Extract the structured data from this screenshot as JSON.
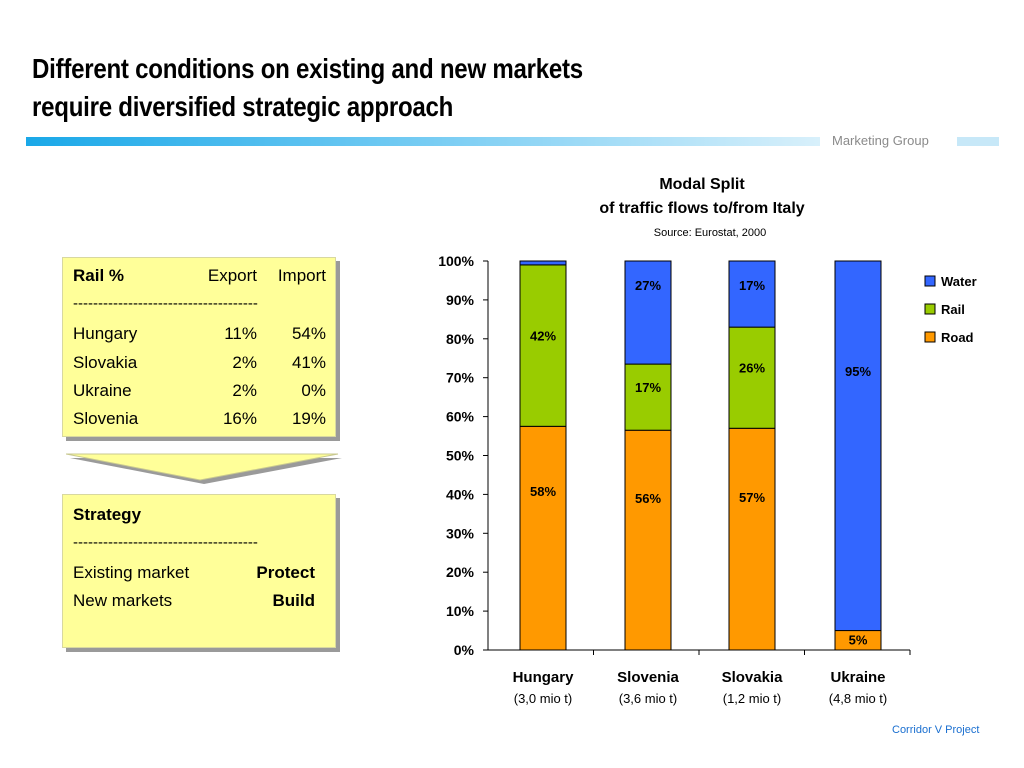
{
  "page": {
    "title_line1": "Different conditions on existing and new markets",
    "title_line2": "require diversified strategic approach",
    "group_label": "Marketing Group",
    "footer": "Corridor V  Project"
  },
  "rail_table": {
    "header": "Rail %",
    "col1": "Export",
    "col2": "Import",
    "separator": "-------------------------------------",
    "rows": [
      {
        "country": "Hungary",
        "export": "11%",
        "import": "54%"
      },
      {
        "country": "Slovakia",
        "export": "2%",
        "import": "41%"
      },
      {
        "country": "Ukraine",
        "export": "2%",
        "import": "0%"
      },
      {
        "country": "Slovenia",
        "export": "16%",
        "import": "19%"
      }
    ]
  },
  "strategy": {
    "header": "Strategy",
    "separator": "-------------------------------------",
    "rows": [
      {
        "label": "Existing market",
        "value": "Protect"
      },
      {
        "label": "New markets",
        "value": "Build"
      }
    ]
  },
  "colors": {
    "water": "#3366ff",
    "rail": "#99cc00",
    "road": "#ff9900",
    "panel": "#ffff99"
  },
  "chart_data": {
    "type": "bar",
    "stacked": true,
    "title": "Modal Split",
    "subtitle": "of traffic flows to/from Italy",
    "source": "Source: Eurostat, 2000",
    "categories": [
      "Hungary",
      "Slovenia",
      "Slovakia",
      "Ukraine"
    ],
    "category_sublabels": [
      "(3,0 mio t)",
      "(3,6 mio t)",
      "(1,2 mio t)",
      "(4,8 mio t)"
    ],
    "ylim": [
      0,
      100
    ],
    "yticks": [
      "0%",
      "10%",
      "20%",
      "30%",
      "40%",
      "50%",
      "60%",
      "70%",
      "80%",
      "90%",
      "100%"
    ],
    "legend_position": "right",
    "series": [
      {
        "name": "Road",
        "color": "#ff9900",
        "values": [
          57.5,
          56.5,
          57,
          5
        ],
        "labels": [
          "58%",
          "56%",
          "57%",
          "5%"
        ]
      },
      {
        "name": "Rail",
        "color": "#99cc00",
        "values": [
          41.5,
          17,
          26,
          0
        ],
        "labels": [
          "42%",
          "17%",
          "26%",
          ""
        ]
      },
      {
        "name": "Water",
        "color": "#3366ff",
        "values": [
          1,
          26.5,
          17,
          95
        ],
        "labels": [
          "",
          "27%",
          "17%",
          "95%"
        ]
      }
    ],
    "legend_order": [
      "Water",
      "Rail",
      "Road"
    ]
  }
}
